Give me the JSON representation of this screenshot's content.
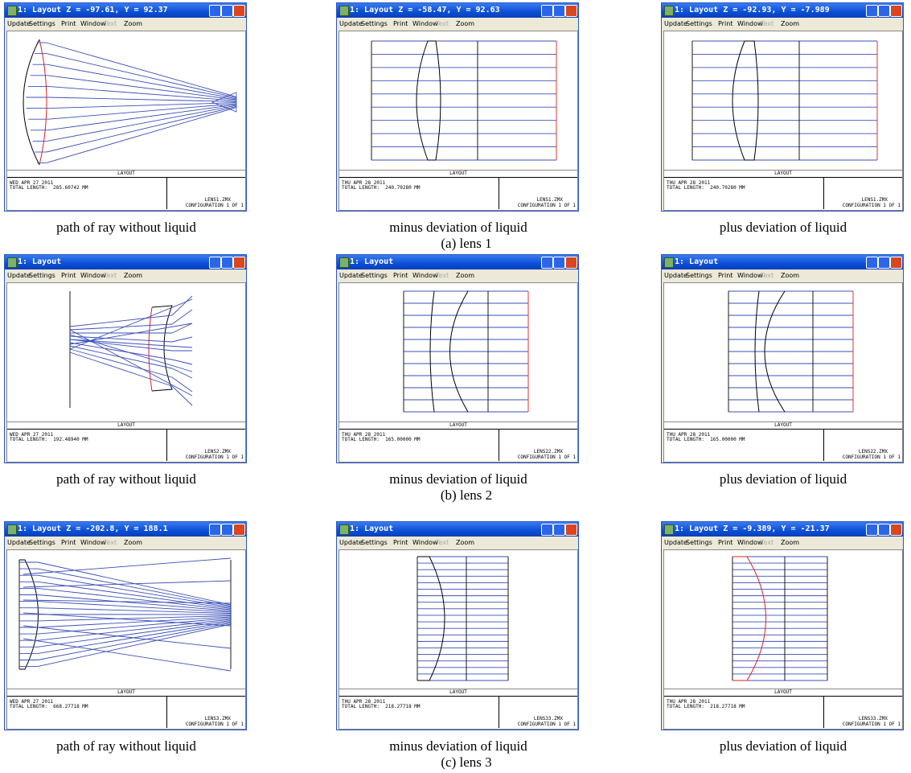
{
  "menu": [
    "Update",
    "Settings",
    "Print",
    "Window",
    "Text",
    "Zoom"
  ],
  "layout_label": "LAYOUT",
  "panels": [
    {
      "title": "1: Layout Z = -97.61, Y = 92.37",
      "date": "WED APR 27 2011",
      "total_length": "TOTAL LENGTH:  285.60742 MM",
      "file": "LENS1.ZMX",
      "configuration": "CONFIGURATION 1 OF 1",
      "caption": "path of ray without liquid"
    },
    {
      "title": "1: Layout Z = -58.47, Y = 92.63",
      "date": "THU APR 28 2011",
      "total_length": "TOTAL LENGTH:  240.70280 MM",
      "file": "LENS1.ZMX",
      "configuration": "CONFIGURATION 1 OF 1",
      "caption": "minus deviation of liquid"
    },
    {
      "title": "1: Layout Z = -92.93, Y = -7.989",
      "date": "THU APR 28 2011",
      "total_length": "TOTAL LENGTH:  240.70280 MM",
      "file": "LENS1.ZMX",
      "configuration": "CONFIGURATION 1 OF 1",
      "caption": "plus deviation of liquid"
    },
    {
      "title": "1: Layout",
      "date": "WED APR 27 2011",
      "total_length": "TOTAL LENGTH:  192.48940 MM",
      "file": "LENS2.ZMX",
      "configuration": "CONFIGURATION 1 OF 1",
      "caption": "path of ray without liquid"
    },
    {
      "title": "1: Layout",
      "date": "THU APR 28 2011",
      "total_length": "TOTAL LENGTH:  165.00000 MM",
      "file": "LENS22.ZMX",
      "configuration": "CONFIGURATION 1 OF 1",
      "caption": "minus deviation of liquid"
    },
    {
      "title": "1: Layout",
      "date": "THU APR 28 2011",
      "total_length": "TOTAL LENGTH:  165.00000 MM",
      "file": "LENS22.ZMX",
      "configuration": "CONFIGURATION 1 OF 1",
      "caption": "plus deviation of liquid"
    },
    {
      "title": "1: Layout Z = -202.8, Y = 188.1",
      "date": "WED APR 27 2011",
      "total_length": "TOTAL LENGTH:  668.27718 MM",
      "file": "LENS3.ZMX",
      "configuration": "CONFIGURATION 1 OF 1",
      "caption": "path of ray without liquid"
    },
    {
      "title": "1: Layout",
      "date": "THU APR 28 2011",
      "total_length": "TOTAL LENGTH:  218.27718 MM",
      "file": "LENS33.ZMX",
      "configuration": "CONFIGURATION 1 OF 1",
      "caption": "minus deviation of liquid"
    },
    {
      "title": "1: Layout Z = -9.389, Y = -21.37",
      "date": "THU APR 28 2011",
      "total_length": "TOTAL LENGTH:  218.27718 MM",
      "file": "LENS33.ZMX",
      "configuration": "CONFIGURATION 1 OF 1",
      "caption": "plus deviation of liquid"
    }
  ],
  "group_captions": [
    "(a) lens 1",
    "(b) lens 2",
    "(c) lens 3"
  ]
}
